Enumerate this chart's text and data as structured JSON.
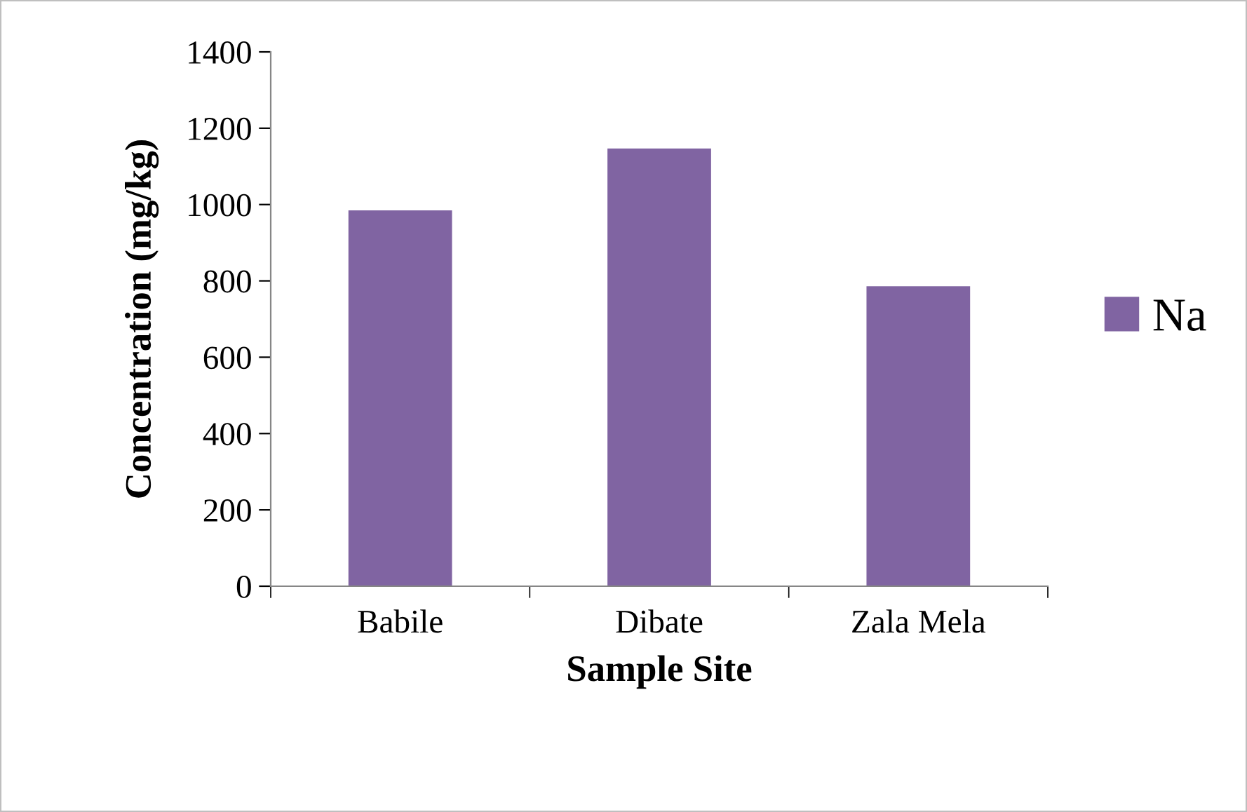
{
  "chart_data": {
    "type": "bar",
    "xlabel": "Sample Site",
    "ylabel": "Concentration (mg/kg)",
    "categories": [
      "Babile",
      "Dibate",
      "Zala Mela"
    ],
    "series": [
      {
        "name": "Na",
        "color": "#8064a2",
        "values": [
          985,
          1147,
          786
        ]
      }
    ],
    "ylim": [
      0,
      1400
    ],
    "yticks": [
      0,
      200,
      400,
      600,
      800,
      1000,
      1200,
      1400
    ],
    "grid": false,
    "legend": "right"
  }
}
